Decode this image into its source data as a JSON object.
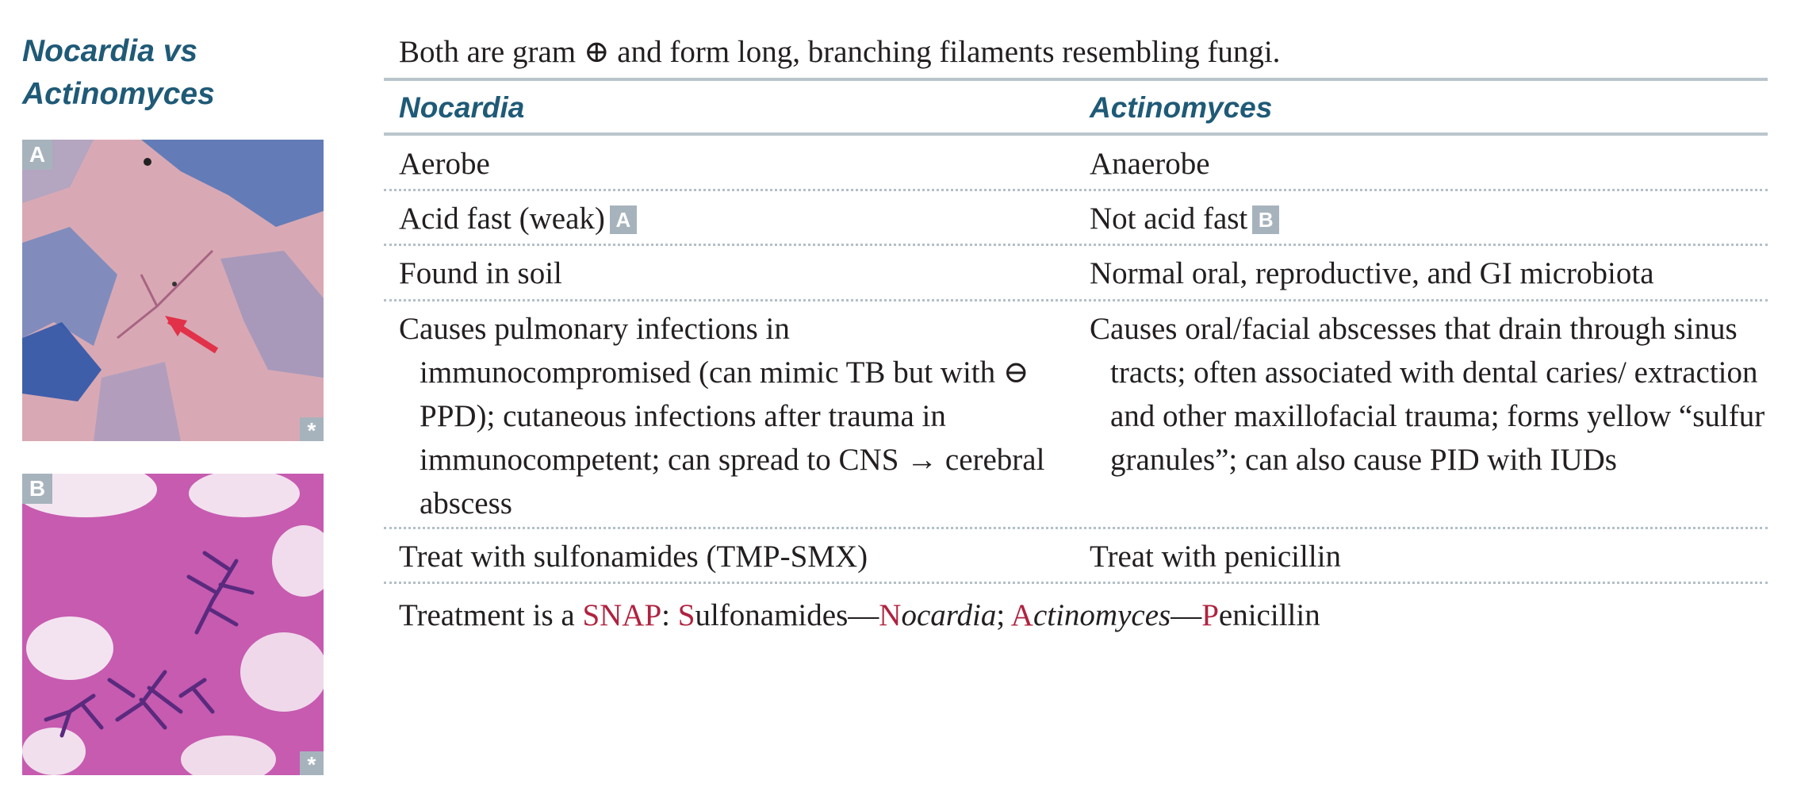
{
  "sidebar": {
    "title_line1": "Nocardia vs",
    "title_line2": "Actinomyces",
    "figure_a": {
      "label": "A",
      "mark": "*"
    },
    "figure_b": {
      "label": "B",
      "mark": "*"
    }
  },
  "table": {
    "intro": "Both are gram ⊕ and form long, branching filaments resembling fungi.",
    "headers": [
      "Nocardia",
      "Actinomyces"
    ],
    "rows": [
      {
        "left": "Aerobe",
        "right": "Anaerobe"
      },
      {
        "left": "Acid fast (weak)",
        "left_badge": "A",
        "right": "Not acid fast",
        "right_badge": "B"
      },
      {
        "left": "Found in soil",
        "right": "Normal oral, reproductive, and GI microbiota"
      },
      {
        "left": "Causes pulmonary infections in immunocompromised (can mimic TB but with ⊖ PPD); cutaneous infections after trauma in immunocompetent; can spread to CNS → cerebral abscess",
        "right": "Causes oral/facial abscesses that drain through sinus tracts; often associated with dental caries/ extraction and other maxillofacial trauma; forms yellow “sulfur granules”; can also cause PID with IUDs"
      },
      {
        "left": "Treat with sulfonamides (TMP-SMX)",
        "right": "Treat with penicillin"
      }
    ]
  },
  "mnemonic": {
    "prefix": "Treatment is a ",
    "snap": "SNAP",
    "colon": ": ",
    "s": "S",
    "s_rest": "ulfonamides—",
    "n": "N",
    "n_rest": "ocardia",
    "semi": "; ",
    "a": "A",
    "a_rest": "ctinomyces",
    "dash": "—",
    "p": "P",
    "p_rest": "enicillin"
  },
  "colors": {
    "heading_blue": "#1f5a77",
    "accent_red": "#b0223f",
    "badge_gray": "#a7b3bc"
  }
}
